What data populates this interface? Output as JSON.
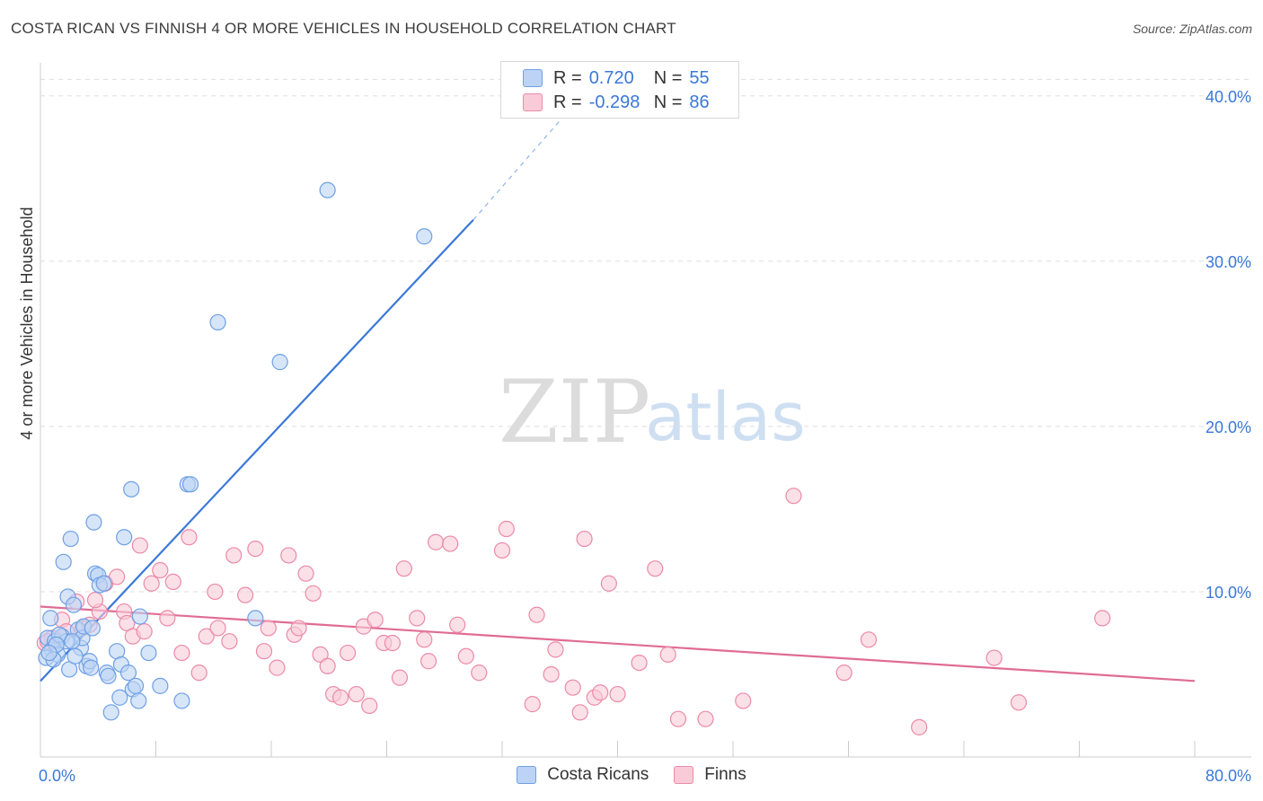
{
  "title": "COSTA RICAN VS FINNISH 4 OR MORE VEHICLES IN HOUSEHOLD CORRELATION CHART",
  "source": "Source: ZipAtlas.com",
  "watermark": {
    "zip": "ZIP",
    "atlas": "atlas"
  },
  "stats": [
    {
      "r_label": "R =",
      "r_value": "0.720",
      "n_label": "N =",
      "n_value": "55",
      "color": "#6ea0e4",
      "fill": "#bcd3f5"
    },
    {
      "r_label": "R =",
      "r_value": "-0.298",
      "n_label": "N =",
      "n_value": "86",
      "color": "#eb8aa8",
      "fill": "#f9cbd9"
    }
  ],
  "legend": [
    {
      "label": "Costa Ricans",
      "color": "#6ea0e4",
      "fill": "#bcd3f5"
    },
    {
      "label": "Finns",
      "color": "#eb8aa8",
      "fill": "#f9cbd9"
    }
  ],
  "chart_data": {
    "type": "scatter",
    "title": "COSTA RICAN VS FINNISH 4 OR MORE VEHICLES IN HOUSEHOLD CORRELATION CHART",
    "xlabel": "",
    "ylabel": "4 or more Vehicles in Household",
    "xlim": [
      0,
      80
    ],
    "ylim": [
      0,
      42
    ],
    "x_tick_labels": [
      "0.0%",
      "80.0%"
    ],
    "y_ticks": [
      10,
      20,
      30,
      40
    ],
    "y_tick_labels": [
      "10.0%",
      "20.0%",
      "30.0%",
      "40.0%"
    ],
    "series": [
      {
        "name": "Costa Ricans",
        "color": "#3b78d8",
        "trend": {
          "x": [
            0,
            30
          ],
          "y": [
            4.6,
            32.5
          ],
          "dashed_to": [
            37,
            39.5
          ]
        },
        "points": [
          [
            0.5,
            7.2
          ],
          [
            0.8,
            6.5
          ],
          [
            1.0,
            7.0
          ],
          [
            0.7,
            8.4
          ],
          [
            1.2,
            6.2
          ],
          [
            0.4,
            6.0
          ],
          [
            1.5,
            7.3
          ],
          [
            1.8,
            7.0
          ],
          [
            2.0,
            5.3
          ],
          [
            1.6,
            11.8
          ],
          [
            1.9,
            9.7
          ],
          [
            2.3,
            9.2
          ],
          [
            2.1,
            13.2
          ],
          [
            2.6,
            7.7
          ],
          [
            2.8,
            6.6
          ],
          [
            2.4,
            6.1
          ],
          [
            2.9,
            7.2
          ],
          [
            3.2,
            5.5
          ],
          [
            3.4,
            5.8
          ],
          [
            3.0,
            7.9
          ],
          [
            3.5,
            5.4
          ],
          [
            3.7,
            14.2
          ],
          [
            3.8,
            11.1
          ],
          [
            4.0,
            11.0
          ],
          [
            4.1,
            10.4
          ],
          [
            4.6,
            5.1
          ],
          [
            4.7,
            4.9
          ],
          [
            4.9,
            2.7
          ],
          [
            5.3,
            6.4
          ],
          [
            5.5,
            3.6
          ],
          [
            5.6,
            5.6
          ],
          [
            5.8,
            13.3
          ],
          [
            6.1,
            5.1
          ],
          [
            6.4,
            4.1
          ],
          [
            6.6,
            4.3
          ],
          [
            6.3,
            16.2
          ],
          [
            6.8,
            3.4
          ],
          [
            6.9,
            8.5
          ],
          [
            7.5,
            6.3
          ],
          [
            8.3,
            4.3
          ],
          [
            9.8,
            3.4
          ],
          [
            10.2,
            16.5
          ],
          [
            10.4,
            16.5
          ],
          [
            12.3,
            26.3
          ],
          [
            14.9,
            8.4
          ],
          [
            16.6,
            23.9
          ],
          [
            19.9,
            34.3
          ],
          [
            26.6,
            31.5
          ],
          [
            1.3,
            7.4
          ],
          [
            3.6,
            7.8
          ],
          [
            0.9,
            5.9
          ],
          [
            2.2,
            7.0
          ],
          [
            1.1,
            6.8
          ],
          [
            4.4,
            10.5
          ],
          [
            0.6,
            6.3
          ]
        ]
      },
      {
        "name": "Finns",
        "color": "#e06c94",
        "trend": {
          "x": [
            0,
            80
          ],
          "y": [
            9.1,
            4.6
          ]
        },
        "points": [
          [
            0.3,
            6.9
          ],
          [
            0.8,
            7.2
          ],
          [
            1.5,
            8.3
          ],
          [
            1.8,
            7.6
          ],
          [
            2.5,
            9.4
          ],
          [
            2.9,
            7.8
          ],
          [
            3.4,
            8.0
          ],
          [
            4.1,
            8.8
          ],
          [
            4.5,
            10.5
          ],
          [
            5.3,
            10.9
          ],
          [
            5.8,
            8.8
          ],
          [
            6.0,
            8.1
          ],
          [
            6.4,
            7.3
          ],
          [
            6.9,
            12.8
          ],
          [
            7.2,
            7.6
          ],
          [
            7.7,
            10.5
          ],
          [
            8.3,
            11.3
          ],
          [
            8.8,
            8.4
          ],
          [
            9.2,
            10.6
          ],
          [
            9.8,
            6.3
          ],
          [
            10.3,
            13.3
          ],
          [
            11.0,
            5.1
          ],
          [
            11.5,
            7.3
          ],
          [
            12.1,
            10.0
          ],
          [
            12.3,
            7.8
          ],
          [
            13.1,
            7.0
          ],
          [
            13.4,
            12.2
          ],
          [
            14.2,
            9.8
          ],
          [
            14.9,
            12.6
          ],
          [
            15.5,
            6.4
          ],
          [
            15.8,
            7.8
          ],
          [
            16.4,
            5.4
          ],
          [
            17.2,
            12.2
          ],
          [
            17.6,
            7.4
          ],
          [
            17.9,
            7.8
          ],
          [
            18.4,
            11.1
          ],
          [
            18.9,
            9.9
          ],
          [
            19.4,
            6.2
          ],
          [
            19.9,
            5.5
          ],
          [
            20.3,
            3.8
          ],
          [
            20.8,
            3.6
          ],
          [
            21.3,
            6.3
          ],
          [
            21.9,
            3.8
          ],
          [
            22.4,
            7.9
          ],
          [
            22.8,
            3.1
          ],
          [
            23.2,
            8.3
          ],
          [
            23.8,
            6.9
          ],
          [
            24.4,
            6.9
          ],
          [
            24.9,
            4.8
          ],
          [
            25.2,
            11.4
          ],
          [
            26.1,
            8.4
          ],
          [
            26.6,
            7.1
          ],
          [
            26.9,
            5.8
          ],
          [
            27.4,
            13.0
          ],
          [
            28.4,
            12.9
          ],
          [
            28.9,
            8.0
          ],
          [
            29.5,
            6.1
          ],
          [
            30.4,
            5.1
          ],
          [
            32.0,
            12.5
          ],
          [
            32.3,
            13.8
          ],
          [
            34.1,
            3.2
          ],
          [
            34.4,
            8.6
          ],
          [
            35.4,
            5.0
          ],
          [
            35.7,
            6.5
          ],
          [
            36.9,
            4.2
          ],
          [
            37.4,
            2.7
          ],
          [
            37.7,
            13.2
          ],
          [
            38.4,
            3.6
          ],
          [
            38.8,
            3.9
          ],
          [
            39.4,
            10.5
          ],
          [
            40.0,
            3.8
          ],
          [
            41.5,
            5.7
          ],
          [
            42.6,
            11.4
          ],
          [
            43.5,
            6.2
          ],
          [
            44.2,
            2.3
          ],
          [
            46.1,
            2.3
          ],
          [
            48.7,
            3.4
          ],
          [
            52.2,
            15.8
          ],
          [
            55.7,
            5.1
          ],
          [
            57.4,
            7.1
          ],
          [
            60.9,
            1.8
          ],
          [
            66.1,
            6.0
          ],
          [
            67.8,
            3.3
          ],
          [
            73.6,
            8.4
          ],
          [
            0.5,
            7.0
          ],
          [
            3.8,
            9.5
          ]
        ]
      }
    ]
  }
}
